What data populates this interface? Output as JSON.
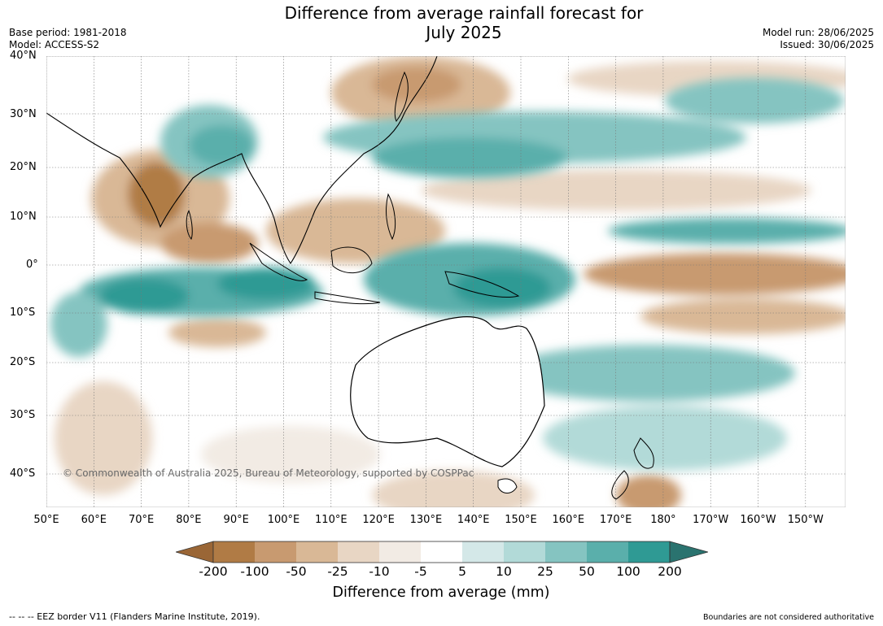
{
  "title_line1": "Difference from average rainfall forecast for",
  "title_line2": "July 2025",
  "meta": {
    "base_period": "Base period: 1981-2018",
    "model": "Model: ACCESS-S2",
    "model_run": "Model run: 28/06/2025",
    "issued": "Issued: 30/06/2025"
  },
  "map": {
    "lat_labels": [
      "40°N",
      "30°N",
      "20°N",
      "10°N",
      "0°",
      "10°S",
      "20°S",
      "30°S",
      "40°S"
    ],
    "lon_labels": [
      "50°E",
      "60°E",
      "70°E",
      "80°E",
      "90°E",
      "100°E",
      "110°E",
      "120°E",
      "130°E",
      "140°E",
      "150°E",
      "160°E",
      "170°E",
      "180°",
      "170°W",
      "160°W",
      "150°W"
    ],
    "copyright": "© Commonwealth of Australia 2025, Bureau of Meteorology, supported by COSPPac",
    "colors": {
      "dry_extreme": "#9a6636",
      "dry_strong": "#b07b45",
      "dry_mod": "#c89a70",
      "dry_light": "#d9b896",
      "dry_faint": "#e8d6c4",
      "dry_trace": "#f2ebe4",
      "neutral": "#ffffff",
      "wet_trace": "#d4e8e8",
      "wet_faint": "#b2dad8",
      "wet_light": "#85c4c1",
      "wet_mod": "#5aafab",
      "wet_strong": "#2f9a94",
      "wet_extreme": "#2a736f"
    }
  },
  "colorbar": {
    "ticks": [
      "-200",
      "-100",
      "-50",
      "-25",
      "-10",
      "-5",
      "5",
      "10",
      "25",
      "50",
      "100",
      "200"
    ],
    "caption": "Difference from average (mm)"
  },
  "footer": {
    "eez": "--  --  -- EEZ border V11 (Flanders Marine Institute, 2019).",
    "boundaries": "Boundaries are not considered authoritative"
  }
}
